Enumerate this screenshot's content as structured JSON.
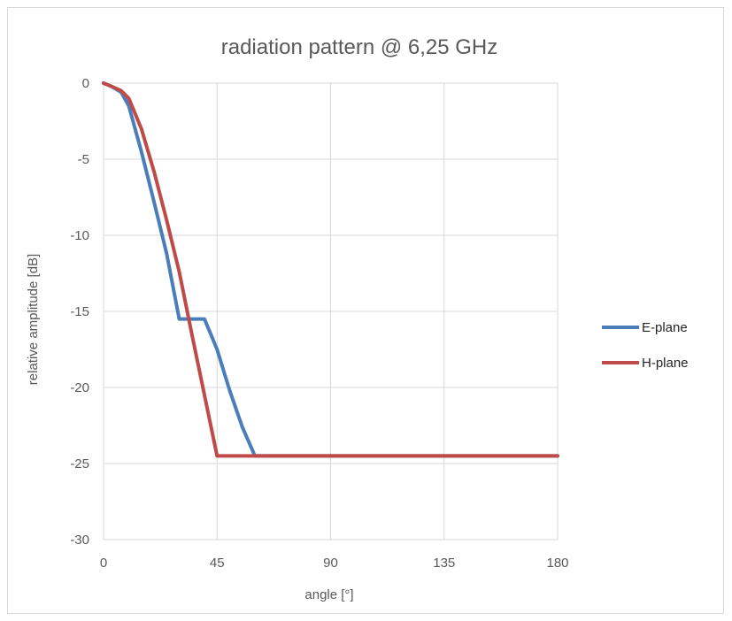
{
  "chart_data": {
    "type": "line",
    "title": "radiation pattern @ 6,25 GHz",
    "xlabel": "angle [°]",
    "ylabel": "relative amplitude [dB]",
    "xlim": [
      0,
      180
    ],
    "ylim": [
      -30,
      0
    ],
    "xticks": [
      0,
      45,
      90,
      135,
      180
    ],
    "yticks": [
      0,
      -5,
      -10,
      -15,
      -20,
      -25,
      -30
    ],
    "grid": true,
    "legend_position": "right",
    "series": [
      {
        "name": "E-plane",
        "color": "#4a7ebb",
        "x": [
          0,
          3,
          7,
          10,
          15,
          20,
          25,
          30,
          35,
          40,
          45,
          50,
          55,
          60,
          180
        ],
        "y": [
          0,
          -0.2,
          -0.6,
          -1.5,
          -4.5,
          -7.8,
          -11.2,
          -15.5,
          -15.5,
          -15.5,
          -17.5,
          -20.2,
          -22.6,
          -24.5,
          -24.5
        ]
      },
      {
        "name": "H-plane",
        "color": "#be4b48",
        "x": [
          0,
          3,
          7,
          10,
          15,
          20,
          25,
          30,
          35,
          40,
          45,
          50,
          55,
          60,
          180
        ],
        "y": [
          0,
          -0.2,
          -0.5,
          -1.0,
          -3.0,
          -5.8,
          -9.0,
          -12.4,
          -16.5,
          -20.5,
          -24.5,
          -24.5,
          -24.5,
          -24.5,
          -24.5
        ]
      }
    ]
  }
}
